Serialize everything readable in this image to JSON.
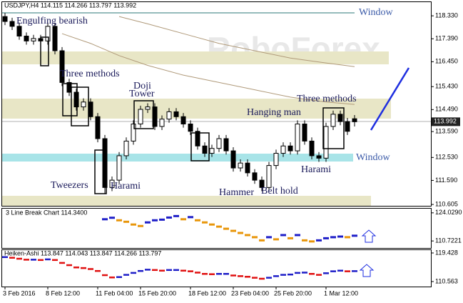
{
  "chart_data": {
    "type": "candlestick",
    "title": "USDJPY,H4  114.115 114.266 113.797 113.992",
    "watermark": "RoboForex",
    "annotations": [
      "Engulfing bearish",
      "Three methods",
      "Doji",
      "Tower",
      "Hanging man",
      "Three methods",
      "Tweezers",
      "Harami",
      "Hammer",
      "Belt hold",
      "Harami",
      "Window",
      "Window"
    ],
    "open": [
      118.3,
      118.1,
      117.9,
      117.5,
      117.3,
      117.4,
      117.3,
      117.9,
      116.9,
      115.6,
      115.2,
      114.6,
      114.8,
      114.2,
      113.3,
      111.3,
      111.6,
      112.6,
      113.2,
      113.9,
      114.5,
      114.6,
      113.8,
      114.1,
      114.4,
      114.2,
      113.9,
      113.6,
      113.0,
      112.7,
      112.9,
      113.3,
      112.8,
      112.1,
      112.3,
      111.9,
      111.6,
      111.3,
      112.2,
      112.7,
      113.0,
      112.8,
      113.9,
      113.2,
      112.6,
      112.5,
      113.8,
      114.3,
      114.0,
      114.115
    ],
    "high": [
      118.45,
      118.25,
      118.05,
      117.65,
      117.55,
      117.55,
      118.05,
      118.05,
      117.05,
      115.75,
      115.35,
      114.95,
      114.95,
      114.35,
      113.45,
      111.75,
      112.75,
      113.35,
      114.05,
      114.65,
      114.75,
      114.75,
      114.25,
      114.55,
      114.55,
      114.35,
      114.05,
      113.75,
      113.15,
      113.05,
      113.45,
      113.45,
      112.95,
      112.45,
      112.45,
      112.05,
      111.75,
      112.35,
      112.85,
      113.15,
      113.15,
      114.05,
      114.05,
      113.35,
      112.75,
      113.95,
      114.45,
      114.45,
      114.15,
      114.266
    ],
    "low": [
      117.95,
      117.75,
      117.35,
      117.15,
      117.15,
      117.15,
      117.15,
      116.75,
      115.45,
      115.05,
      114.45,
      114.45,
      114.05,
      113.15,
      111.05,
      111.15,
      111.45,
      112.45,
      113.05,
      113.75,
      114.35,
      113.65,
      113.65,
      113.95,
      114.05,
      113.75,
      113.45,
      112.85,
      112.55,
      112.55,
      112.75,
      112.65,
      111.95,
      111.95,
      111.75,
      111.45,
      111.15,
      111.15,
      112.05,
      112.55,
      112.65,
      112.65,
      113.05,
      112.45,
      112.35,
      112.35,
      113.65,
      113.85,
      113.45,
      113.797
    ],
    "close": [
      118.1,
      117.9,
      117.5,
      117.3,
      117.4,
      117.3,
      117.9,
      116.9,
      115.6,
      115.2,
      114.6,
      114.8,
      114.2,
      113.3,
      111.3,
      111.6,
      112.6,
      113.2,
      113.9,
      114.5,
      114.6,
      113.8,
      114.1,
      114.4,
      114.2,
      113.9,
      113.6,
      113.0,
      112.7,
      112.9,
      113.3,
      112.8,
      112.1,
      112.3,
      111.9,
      111.6,
      111.3,
      112.2,
      112.7,
      113.0,
      112.8,
      113.9,
      113.2,
      112.6,
      112.5,
      113.8,
      114.3,
      114.0,
      113.6,
      113.992
    ],
    "last_price": {
      "value": 113.992,
      "label": "113.992"
    },
    "ylim": [
      110.52,
      118.89
    ],
    "yticks": [
      {
        "value": 118.33,
        "label": "118.330"
      },
      {
        "value": 117.39,
        "label": "117.390"
      },
      {
        "value": 116.45,
        "label": "116.450"
      },
      {
        "value": 115.43,
        "label": "115.430"
      },
      {
        "value": 114.49,
        "label": "114.490"
      },
      {
        "value": 113.59,
        "label": "113.590"
      },
      {
        "value": 112.53,
        "label": "112.530"
      },
      {
        "value": 111.59,
        "label": "111.590"
      },
      {
        "value": 110.605,
        "label": "110.605"
      }
    ],
    "xticks": [
      {
        "value": 0,
        "label": "3 Feb 2016"
      },
      {
        "value": 6,
        "label": "8 Feb 12:00"
      },
      {
        "value": 13,
        "label": "11 Feb 04:00"
      },
      {
        "value": 19,
        "label": "15 Feb 20:00"
      },
      {
        "value": 26,
        "label": "18 Feb 12:00"
      },
      {
        "value": 32,
        "label": "23 Feb 04:00"
      },
      {
        "value": 38,
        "label": "25 Feb 20:00"
      },
      {
        "value": 45,
        "label": "1 Mar 12:00"
      }
    ],
    "moving_averages": [
      {
        "color": "#b09a7a",
        "x": [
          16,
          20,
          25,
          30,
          35,
          40,
          45,
          49
        ],
        "values": [
          118.3,
          118.0,
          117.6,
          117.2,
          116.9,
          116.6,
          116.4,
          116.25
        ]
      },
      {
        "color": "#b09a7a",
        "x": [
          8,
          12,
          16,
          20,
          25,
          30,
          35,
          40,
          45,
          49
        ],
        "values": [
          117.6,
          117.2,
          116.7,
          116.3,
          115.9,
          115.6,
          115.3,
          115.0,
          114.8,
          114.7
        ]
      }
    ],
    "indicators": [
      {
        "type": "line-break",
        "title": "3 Line Break Chart 114.3400",
        "up_color": "#1e1ec8",
        "down_color": "#e8960a",
        "values": [
          null,
          null,
          null,
          null,
          null,
          null,
          null,
          null,
          null,
          null,
          null,
          null,
          null,
          null,
          121.0,
          121.7,
          120.5,
          119.8,
          118.5,
          117.8,
          119.5,
          120.5,
          120.8,
          121.8,
          122.5,
          121.0,
          122.0,
          120.5,
          119.5,
          118.5,
          117.5,
          116.5,
          115.5,
          114.5,
          113.5,
          112.5,
          111.0,
          112.5,
          111.5,
          113.5,
          112.0,
          113.5,
          111.0,
          110.5,
          111.0,
          112.0,
          112.5,
          112.8,
          112.5,
          113.2
        ],
        "ylim": [
          107.4,
          126.0
        ],
        "yticks": [
          {
            "value": 124.029,
            "label": "124.0290"
          },
          {
            "value": 110.7221,
            "label": "110.7221"
          }
        ]
      },
      {
        "type": "heiken-ashi",
        "title": "Heiken-Ashi 113.847 114.043 113.847 114.266 113.797",
        "up_color": "#1e1ec8",
        "down_color": "#e01010",
        "values": [
          118.2,
          118.0,
          117.7,
          117.4,
          117.4,
          117.3,
          117.5,
          117.3,
          116.4,
          115.7,
          115.0,
          114.8,
          114.5,
          113.9,
          112.6,
          111.9,
          112.0,
          112.7,
          113.3,
          113.9,
          114.3,
          114.2,
          114.0,
          114.2,
          114.2,
          114.0,
          113.8,
          113.4,
          113.0,
          112.9,
          113.0,
          113.0,
          112.5,
          112.3,
          112.1,
          111.8,
          111.5,
          111.8,
          112.3,
          112.7,
          112.8,
          113.3,
          113.4,
          113.0,
          112.7,
          113.2,
          113.8,
          114.0,
          113.8,
          113.85
        ],
        "ylim": [
          109.01,
          120.31
        ],
        "yticks": [
          {
            "value": 119.428,
            "label": "119.428"
          },
          {
            "value": 110.563,
            "label": "110.563"
          }
        ]
      }
    ]
  }
}
